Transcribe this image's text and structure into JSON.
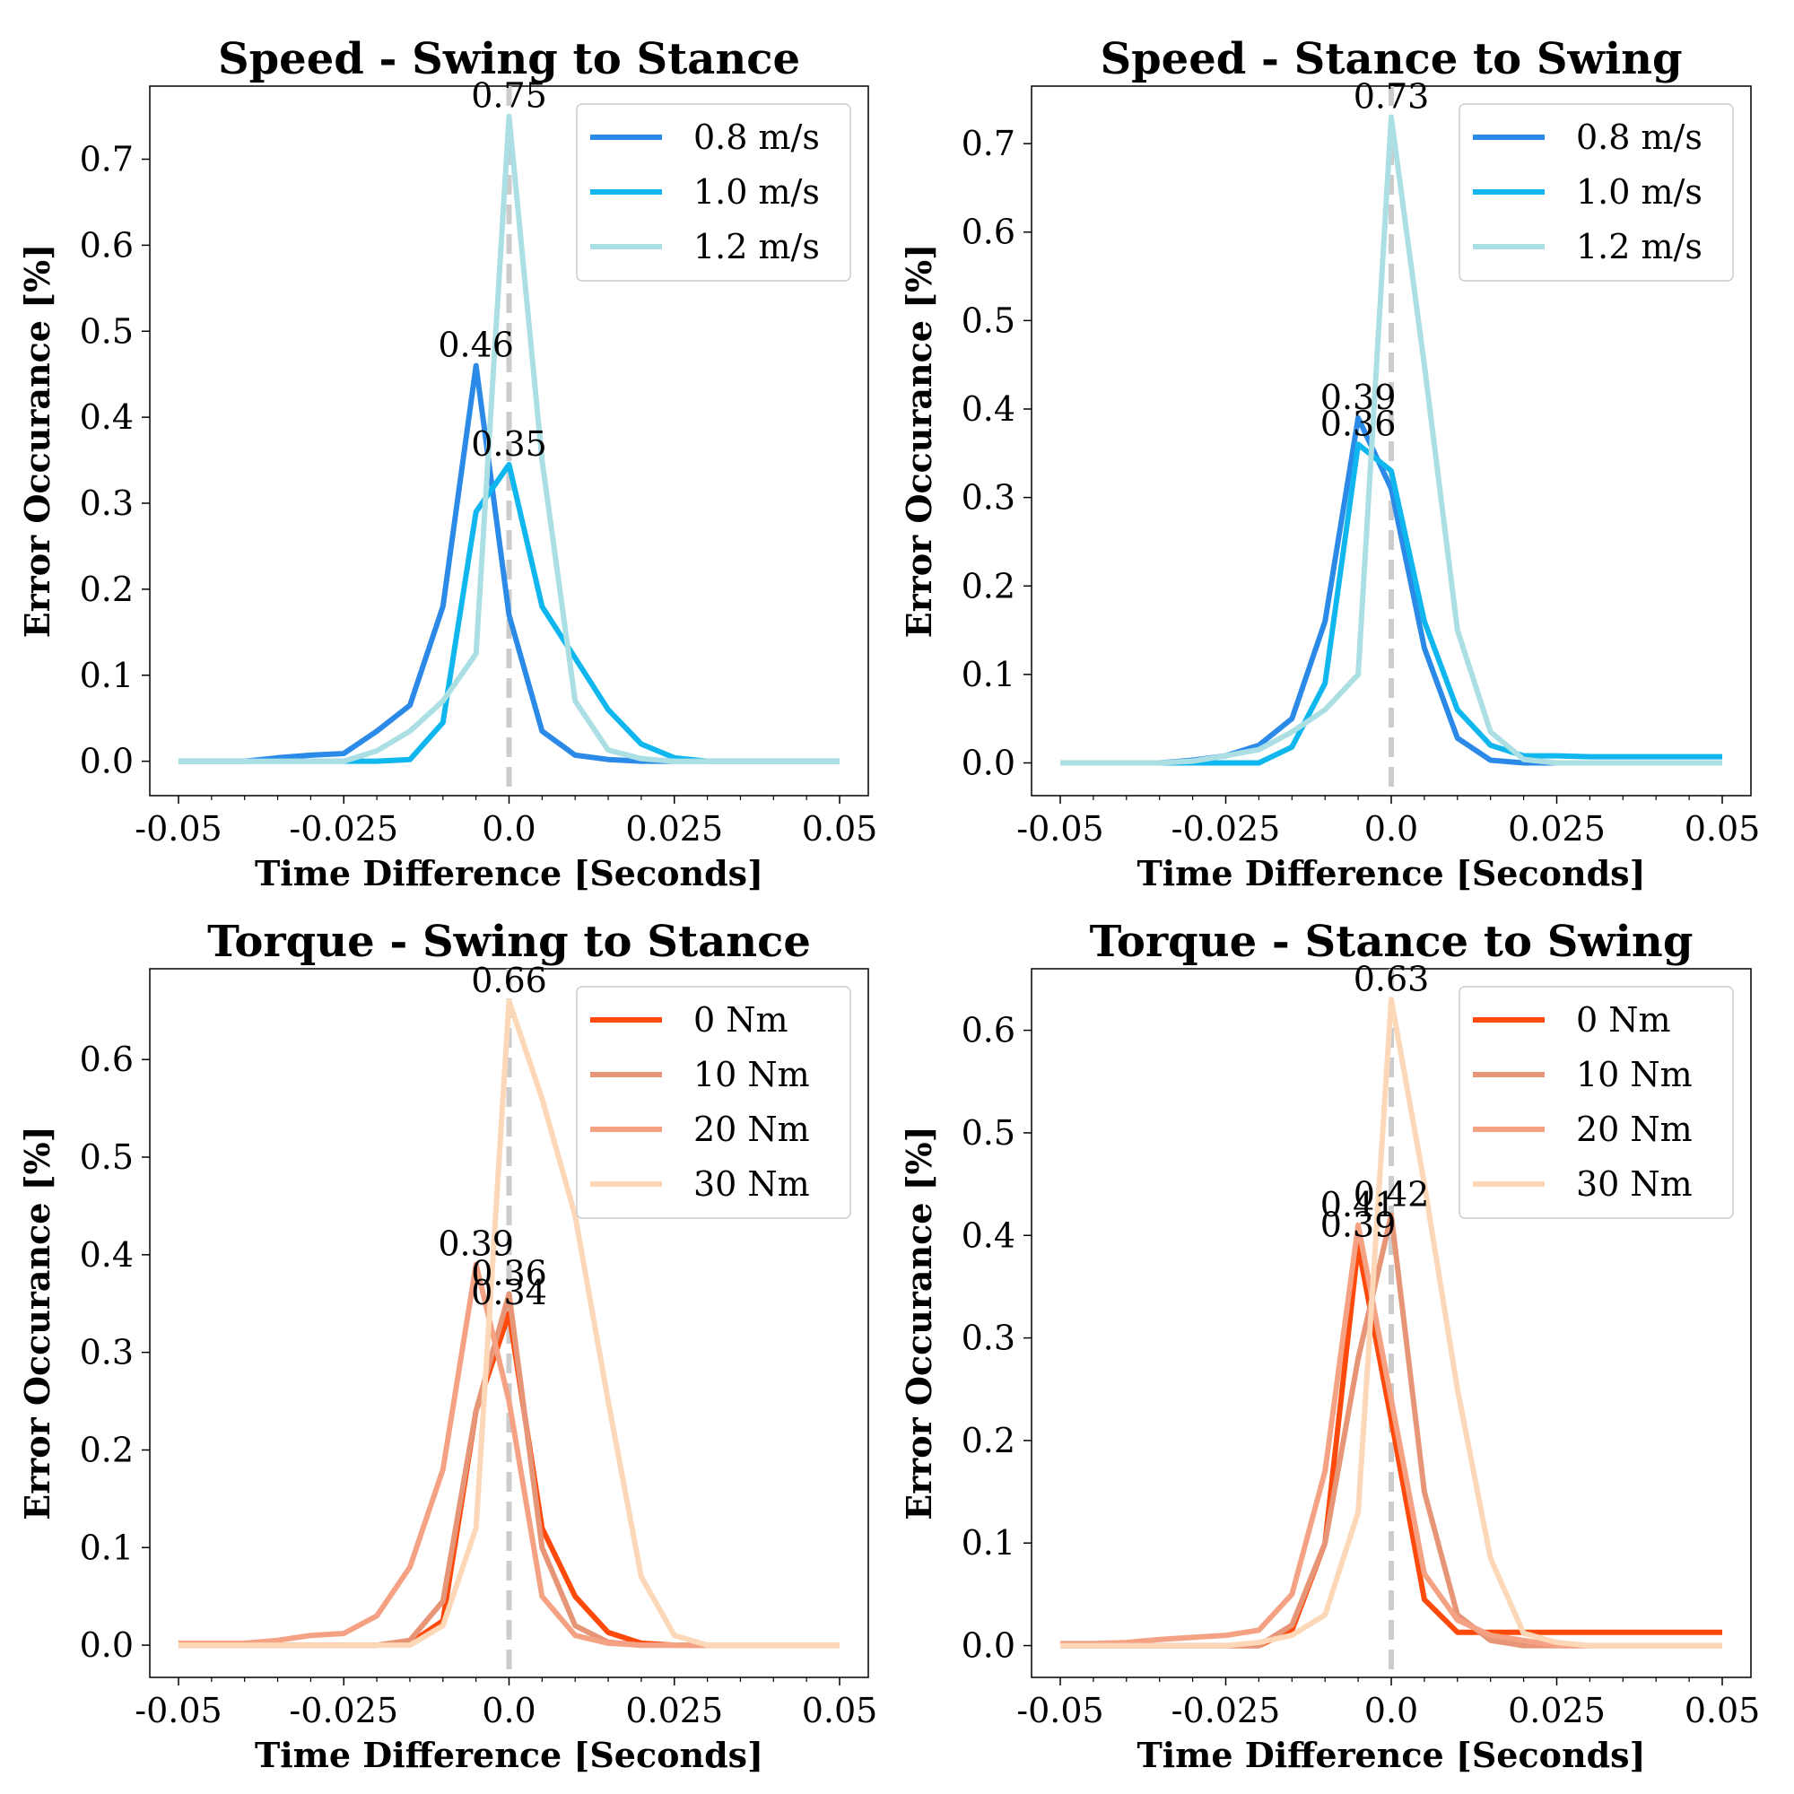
{
  "chart_data": [
    {
      "type": "line",
      "title": "Speed - Swing to Stance",
      "xlabel": "Time Difference [Seconds]",
      "ylabel": "Error Occurance [%]",
      "xlim": [
        -0.05,
        0.05
      ],
      "ylim": [
        -0.04,
        0.785
      ],
      "xticks": [
        "-0.05",
        "-0.025",
        "0.0",
        "0.025",
        "0.05"
      ],
      "yticks": [
        "0.0",
        "0.1",
        "0.2",
        "0.3",
        "0.4",
        "0.5",
        "0.6",
        "0.7"
      ],
      "legend_position": "top-right",
      "reference_line_x": 0.0,
      "x": [
        -0.05,
        -0.045,
        -0.04,
        -0.035,
        -0.03,
        -0.025,
        -0.02,
        -0.015,
        -0.01,
        -0.005,
        0.0,
        0.005,
        0.01,
        0.015,
        0.02,
        0.025,
        0.03,
        0.035,
        0.04,
        0.045,
        0.05
      ],
      "series": [
        {
          "name": "0.8 m/s",
          "color": "#2b8ae8",
          "values": [
            0,
            0,
            0,
            0.004,
            0.007,
            0.009,
            0.035,
            0.065,
            0.18,
            0.46,
            0.17,
            0.035,
            0.007,
            0.002,
            0,
            0,
            0,
            0,
            0,
            0,
            0
          ]
        },
        {
          "name": "1.0 m/s",
          "color": "#0fb7ee",
          "values": [
            0,
            0,
            0,
            0,
            0,
            0,
            0,
            0.002,
            0.045,
            0.29,
            0.345,
            0.18,
            0.12,
            0.06,
            0.02,
            0.004,
            0,
            0,
            0,
            0,
            0
          ]
        },
        {
          "name": "1.2 m/s",
          "color": "#abdfe3",
          "values": [
            0,
            0,
            0,
            0,
            0,
            0,
            0.012,
            0.035,
            0.07,
            0.125,
            0.75,
            0.35,
            0.07,
            0.013,
            0.003,
            0,
            0,
            0,
            0,
            0,
            0
          ]
        }
      ],
      "peak_labels": [
        {
          "text": "0.46",
          "x": -0.005,
          "y": 0.46
        },
        {
          "text": "0.35",
          "x": 0.0,
          "y": 0.345
        },
        {
          "text": "0.75",
          "x": 0.0,
          "y": 0.75
        }
      ]
    },
    {
      "type": "line",
      "title": "Speed - Stance to Swing",
      "xlabel": "Time Difference [Seconds]",
      "ylabel": "Error Occurance [%]",
      "xlim": [
        -0.05,
        0.05
      ],
      "ylim": [
        -0.037,
        0.765
      ],
      "xticks": [
        "-0.05",
        "-0.025",
        "0.0",
        "0.025",
        "0.05"
      ],
      "yticks": [
        "0.0",
        "0.1",
        "0.2",
        "0.3",
        "0.4",
        "0.5",
        "0.6",
        "0.7"
      ],
      "legend_position": "top-right",
      "reference_line_x": 0.0,
      "x": [
        -0.05,
        -0.045,
        -0.04,
        -0.035,
        -0.03,
        -0.025,
        -0.02,
        -0.015,
        -0.01,
        -0.005,
        0.0,
        0.005,
        0.01,
        0.015,
        0.02,
        0.025,
        0.03,
        0.035,
        0.04,
        0.045,
        0.05
      ],
      "series": [
        {
          "name": "0.8 m/s",
          "color": "#2b8ae8",
          "values": [
            0,
            0,
            0,
            0,
            0.003,
            0.008,
            0.02,
            0.05,
            0.16,
            0.39,
            0.31,
            0.13,
            0.028,
            0.003,
            0,
            0,
            0,
            0,
            0,
            0,
            0
          ]
        },
        {
          "name": "1.0 m/s",
          "color": "#0fb7ee",
          "values": [
            0,
            0,
            0,
            0,
            0,
            0,
            0,
            0.018,
            0.09,
            0.36,
            0.33,
            0.16,
            0.06,
            0.02,
            0.008,
            0.008,
            0.007,
            0.007,
            0.007,
            0.007,
            0.007
          ]
        },
        {
          "name": "1.2 m/s",
          "color": "#abdfe3",
          "values": [
            0,
            0,
            0,
            0,
            0.002,
            0.008,
            0.015,
            0.035,
            0.06,
            0.1,
            0.73,
            0.45,
            0.15,
            0.035,
            0.004,
            0,
            0,
            0,
            0,
            0,
            0
          ]
        }
      ],
      "peak_labels": [
        {
          "text": "0.39",
          "x": -0.005,
          "y": 0.39
        },
        {
          "text": "0.36",
          "x": -0.005,
          "y": 0.36
        },
        {
          "text": "0.73",
          "x": 0.0,
          "y": 0.73
        }
      ]
    },
    {
      "type": "line",
      "title": "Torque - Swing to Stance",
      "xlabel": "Time Difference [Seconds]",
      "ylabel": "Error Occurance [%]",
      "xlim": [
        -0.05,
        0.05
      ],
      "ylim": [
        -0.033,
        0.693
      ],
      "xticks": [
        "-0.05",
        "-0.025",
        "0.0",
        "0.025",
        "0.05"
      ],
      "yticks": [
        "0.0",
        "0.1",
        "0.2",
        "0.3",
        "0.4",
        "0.5",
        "0.6"
      ],
      "legend_position": "top-right",
      "reference_line_x": 0.0,
      "x": [
        -0.05,
        -0.045,
        -0.04,
        -0.035,
        -0.03,
        -0.025,
        -0.02,
        -0.015,
        -0.01,
        -0.005,
        0.0,
        0.005,
        0.01,
        0.015,
        0.02,
        0.025,
        0.03,
        0.035,
        0.04,
        0.045,
        0.05
      ],
      "series": [
        {
          "name": "0 Nm",
          "color": "#ff4a0c",
          "values": [
            0,
            0,
            0,
            0,
            0,
            0,
            0,
            0.002,
            0.025,
            0.24,
            0.34,
            0.12,
            0.05,
            0.013,
            0.002,
            0,
            0,
            0,
            0,
            0,
            0
          ]
        },
        {
          "name": "10 Nm",
          "color": "#e79577",
          "values": [
            0,
            0,
            0,
            0,
            0,
            0,
            0,
            0.005,
            0.045,
            0.24,
            0.36,
            0.1,
            0.02,
            0.003,
            0,
            0,
            0,
            0,
            0,
            0,
            0
          ]
        },
        {
          "name": "20 Nm",
          "color": "#f4a283",
          "values": [
            0.002,
            0.002,
            0.002,
            0.005,
            0.01,
            0.012,
            0.03,
            0.08,
            0.18,
            0.39,
            0.25,
            0.05,
            0.01,
            0.002,
            0,
            0,
            0,
            0,
            0,
            0,
            0
          ]
        },
        {
          "name": "30 Nm",
          "color": "#fcd7b8",
          "values": [
            0,
            0,
            0,
            0,
            0,
            0,
            0,
            0,
            0.02,
            0.12,
            0.66,
            0.56,
            0.44,
            0.25,
            0.07,
            0.01,
            0,
            0,
            0,
            0,
            0
          ]
        }
      ],
      "peak_labels": [
        {
          "text": "0.39",
          "x": -0.005,
          "y": 0.39
        },
        {
          "text": "0.36",
          "x": 0.0,
          "y": 0.36
        },
        {
          "text": "0.34",
          "x": 0.0,
          "y": 0.34
        },
        {
          "text": "0.66",
          "x": 0.0,
          "y": 0.66
        }
      ]
    },
    {
      "type": "line",
      "title": "Torque - Stance to Swing",
      "xlabel": "Time Difference [Seconds]",
      "ylabel": "Error Occurance [%]",
      "xlim": [
        -0.05,
        0.05
      ],
      "ylim": [
        -0.031,
        0.66
      ],
      "xticks": [
        "-0.05",
        "-0.025",
        "0.0",
        "0.025",
        "0.05"
      ],
      "yticks": [
        "0.0",
        "0.1",
        "0.2",
        "0.3",
        "0.4",
        "0.5",
        "0.6"
      ],
      "legend_position": "top-right",
      "reference_line_x": 0.0,
      "x": [
        -0.05,
        -0.045,
        -0.04,
        -0.035,
        -0.03,
        -0.025,
        -0.02,
        -0.015,
        -0.01,
        -0.005,
        0.0,
        0.005,
        0.01,
        0.015,
        0.02,
        0.025,
        0.03,
        0.035,
        0.04,
        0.045,
        0.05
      ],
      "series": [
        {
          "name": "0 Nm",
          "color": "#ff4a0c",
          "values": [
            0,
            0,
            0,
            0,
            0,
            0,
            0,
            0.015,
            0.1,
            0.39,
            0.22,
            0.045,
            0.013,
            0.013,
            0.013,
            0.013,
            0.013,
            0.013,
            0.013,
            0.013,
            0.013
          ]
        },
        {
          "name": "10 Nm",
          "color": "#e79577",
          "values": [
            0,
            0,
            0,
            0,
            0,
            0,
            0,
            0.02,
            0.1,
            0.28,
            0.42,
            0.15,
            0.03,
            0.005,
            0,
            0,
            0,
            0,
            0,
            0,
            0
          ]
        },
        {
          "name": "20 Nm",
          "color": "#f4a283",
          "values": [
            0.002,
            0.002,
            0.003,
            0.006,
            0.008,
            0.01,
            0.015,
            0.05,
            0.17,
            0.41,
            0.24,
            0.07,
            0.025,
            0.01,
            0.005,
            0,
            0,
            0,
            0,
            0,
            0
          ]
        },
        {
          "name": "30 Nm",
          "color": "#fcd7b8",
          "values": [
            0,
            0,
            0,
            0,
            0,
            0,
            0.003,
            0.01,
            0.03,
            0.13,
            0.63,
            0.45,
            0.25,
            0.085,
            0.012,
            0.003,
            0,
            0,
            0,
            0,
            0
          ]
        }
      ],
      "peak_labels": [
        {
          "text": "0.41",
          "x": -0.005,
          "y": 0.41
        },
        {
          "text": "0.39",
          "x": -0.005,
          "y": 0.39
        },
        {
          "text": "0.42",
          "x": 0.0,
          "y": 0.42
        },
        {
          "text": "0.63",
          "x": 0.0,
          "y": 0.63
        }
      ]
    }
  ]
}
